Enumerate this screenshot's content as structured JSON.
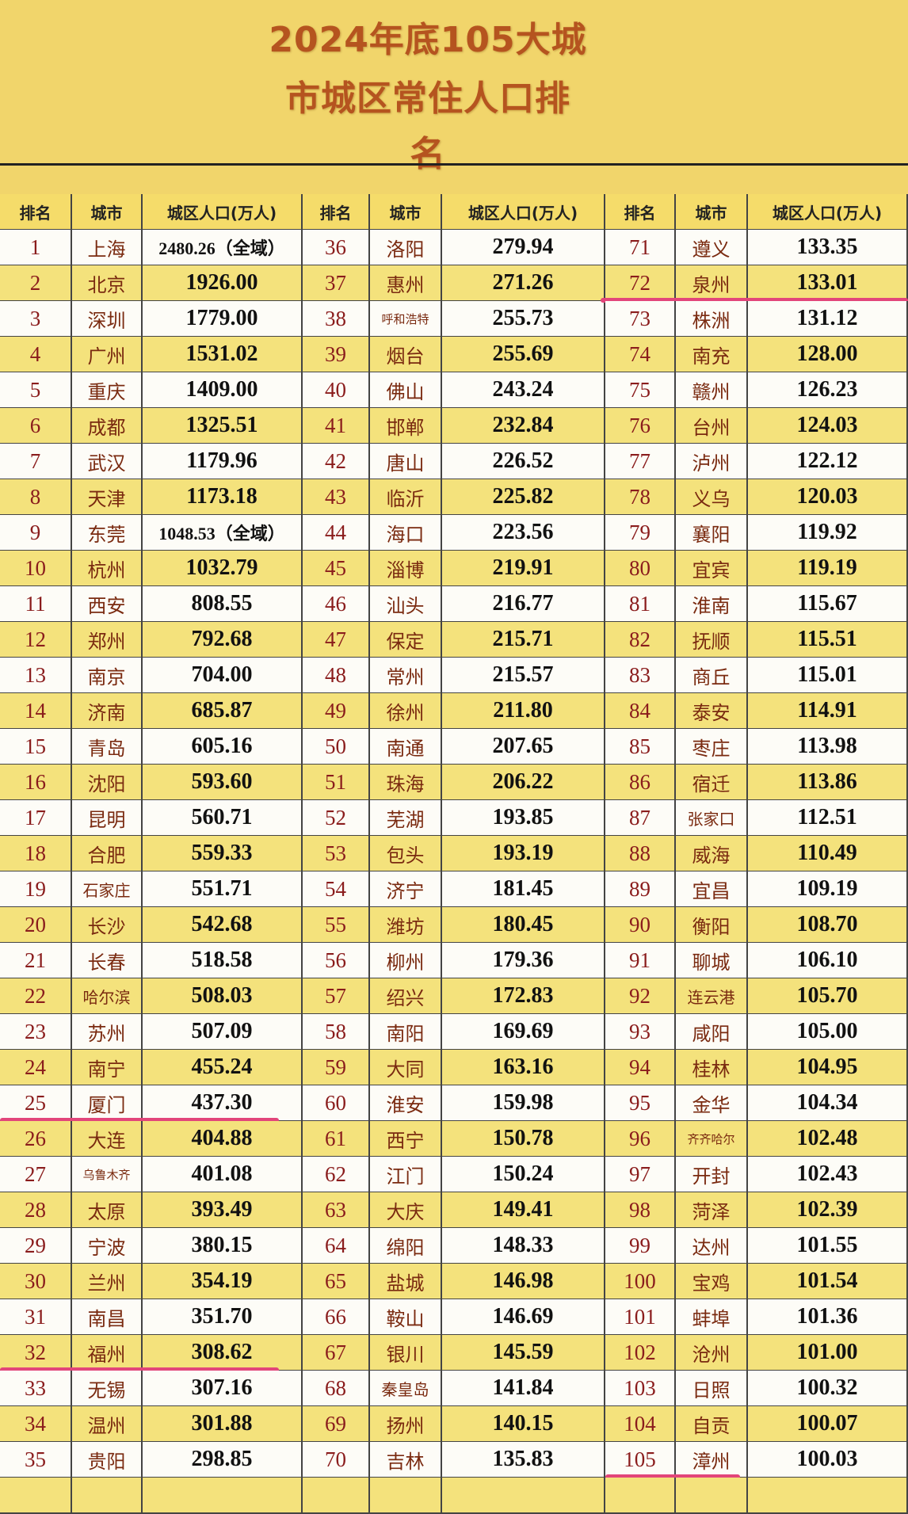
{
  "title": {
    "line1": "2024年底105大城",
    "line2": "市城区常住人口排",
    "line3": "名"
  },
  "header": {
    "rank": "排名",
    "city": "城市",
    "population": "城区人口(万人)"
  },
  "accent_colors": {
    "background": "#f1d56b",
    "row_yellow": "#f4e27c",
    "row_white": "#fdfcf7",
    "rank_text": "#8a1c1c",
    "highlight_underline": "#e2457a"
  },
  "highlighted_ranks": [
    25,
    32,
    72,
    105
  ],
  "columns": [
    [
      {
        "rank": "1",
        "city": "上海",
        "population": "2480.26（全域）"
      },
      {
        "rank": "2",
        "city": "北京",
        "population": "1926.00"
      },
      {
        "rank": "3",
        "city": "深圳",
        "population": "1779.00"
      },
      {
        "rank": "4",
        "city": "广州",
        "population": "1531.02"
      },
      {
        "rank": "5",
        "city": "重庆",
        "population": "1409.00"
      },
      {
        "rank": "6",
        "city": "成都",
        "population": "1325.51"
      },
      {
        "rank": "7",
        "city": "武汉",
        "population": "1179.96"
      },
      {
        "rank": "8",
        "city": "天津",
        "population": "1173.18"
      },
      {
        "rank": "9",
        "city": "东莞",
        "population": "1048.53（全域）"
      },
      {
        "rank": "10",
        "city": "杭州",
        "population": "1032.79"
      },
      {
        "rank": "11",
        "city": "西安",
        "population": "808.55"
      },
      {
        "rank": "12",
        "city": "郑州",
        "population": "792.68"
      },
      {
        "rank": "13",
        "city": "南京",
        "population": "704.00"
      },
      {
        "rank": "14",
        "city": "济南",
        "population": "685.87"
      },
      {
        "rank": "15",
        "city": "青岛",
        "population": "605.16"
      },
      {
        "rank": "16",
        "city": "沈阳",
        "population": "593.60"
      },
      {
        "rank": "17",
        "city": "昆明",
        "population": "560.71"
      },
      {
        "rank": "18",
        "city": "合肥",
        "population": "559.33"
      },
      {
        "rank": "19",
        "city": "石家庄",
        "population": "551.71"
      },
      {
        "rank": "20",
        "city": "长沙",
        "population": "542.68"
      },
      {
        "rank": "21",
        "city": "长春",
        "population": "518.58"
      },
      {
        "rank": "22",
        "city": "哈尔滨",
        "population": "508.03"
      },
      {
        "rank": "23",
        "city": "苏州",
        "population": "507.09"
      },
      {
        "rank": "24",
        "city": "南宁",
        "population": "455.24"
      },
      {
        "rank": "25",
        "city": "厦门",
        "population": "437.30"
      },
      {
        "rank": "26",
        "city": "大连",
        "population": "404.88"
      },
      {
        "rank": "27",
        "city": "乌鲁木齐",
        "population": "401.08"
      },
      {
        "rank": "28",
        "city": "太原",
        "population": "393.49"
      },
      {
        "rank": "29",
        "city": "宁波",
        "population": "380.15"
      },
      {
        "rank": "30",
        "city": "兰州",
        "population": "354.19"
      },
      {
        "rank": "31",
        "city": "南昌",
        "population": "351.70"
      },
      {
        "rank": "32",
        "city": "福州",
        "population": "308.62"
      },
      {
        "rank": "33",
        "city": "无锡",
        "population": "307.16"
      },
      {
        "rank": "34",
        "city": "温州",
        "population": "301.88"
      },
      {
        "rank": "35",
        "city": "贵阳",
        "population": "298.85"
      }
    ],
    [
      {
        "rank": "36",
        "city": "洛阳",
        "population": "279.94"
      },
      {
        "rank": "37",
        "city": "惠州",
        "population": "271.26"
      },
      {
        "rank": "38",
        "city": "呼和浩特",
        "population": "255.73"
      },
      {
        "rank": "39",
        "city": "烟台",
        "population": "255.69"
      },
      {
        "rank": "40",
        "city": "佛山",
        "population": "243.24"
      },
      {
        "rank": "41",
        "city": "邯郸",
        "population": "232.84"
      },
      {
        "rank": "42",
        "city": "唐山",
        "population": "226.52"
      },
      {
        "rank": "43",
        "city": "临沂",
        "population": "225.82"
      },
      {
        "rank": "44",
        "city": "海口",
        "population": "223.56"
      },
      {
        "rank": "45",
        "city": "淄博",
        "population": "219.91"
      },
      {
        "rank": "46",
        "city": "汕头",
        "population": "216.77"
      },
      {
        "rank": "47",
        "city": "保定",
        "population": "215.71"
      },
      {
        "rank": "48",
        "city": "常州",
        "population": "215.57"
      },
      {
        "rank": "49",
        "city": "徐州",
        "population": "211.80"
      },
      {
        "rank": "50",
        "city": "南通",
        "population": "207.65"
      },
      {
        "rank": "51",
        "city": "珠海",
        "population": "206.22"
      },
      {
        "rank": "52",
        "city": "芜湖",
        "population": "193.85"
      },
      {
        "rank": "53",
        "city": "包头",
        "population": "193.19"
      },
      {
        "rank": "54",
        "city": "济宁",
        "population": "181.45"
      },
      {
        "rank": "55",
        "city": "潍坊",
        "population": "180.45"
      },
      {
        "rank": "56",
        "city": "柳州",
        "population": "179.36"
      },
      {
        "rank": "57",
        "city": "绍兴",
        "population": "172.83"
      },
      {
        "rank": "58",
        "city": "南阳",
        "population": "169.69"
      },
      {
        "rank": "59",
        "city": "大同",
        "population": "163.16"
      },
      {
        "rank": "60",
        "city": "淮安",
        "population": "159.98"
      },
      {
        "rank": "61",
        "city": "西宁",
        "population": "150.78"
      },
      {
        "rank": "62",
        "city": "江门",
        "population": "150.24"
      },
      {
        "rank": "63",
        "city": "大庆",
        "population": "149.41"
      },
      {
        "rank": "64",
        "city": "绵阳",
        "population": "148.33"
      },
      {
        "rank": "65",
        "city": "盐城",
        "population": "146.98"
      },
      {
        "rank": "66",
        "city": "鞍山",
        "population": "146.69"
      },
      {
        "rank": "67",
        "city": "银川",
        "population": "145.59"
      },
      {
        "rank": "68",
        "city": "秦皇岛",
        "population": "141.84"
      },
      {
        "rank": "69",
        "city": "扬州",
        "population": "140.15"
      },
      {
        "rank": "70",
        "city": "吉林",
        "population": "135.83"
      }
    ],
    [
      {
        "rank": "71",
        "city": "遵义",
        "population": "133.35"
      },
      {
        "rank": "72",
        "city": "泉州",
        "population": "133.01"
      },
      {
        "rank": "73",
        "city": "株洲",
        "population": "131.12"
      },
      {
        "rank": "74",
        "city": "南充",
        "population": "128.00"
      },
      {
        "rank": "75",
        "city": "赣州",
        "population": "126.23"
      },
      {
        "rank": "76",
        "city": "台州",
        "population": "124.03"
      },
      {
        "rank": "77",
        "city": "泸州",
        "population": "122.12"
      },
      {
        "rank": "78",
        "city": "义乌",
        "population": "120.03"
      },
      {
        "rank": "79",
        "city": "襄阳",
        "population": "119.92"
      },
      {
        "rank": "80",
        "city": "宜宾",
        "population": "119.19"
      },
      {
        "rank": "81",
        "city": "淮南",
        "population": "115.67"
      },
      {
        "rank": "82",
        "city": "抚顺",
        "population": "115.51"
      },
      {
        "rank": "83",
        "city": "商丘",
        "population": "115.01"
      },
      {
        "rank": "84",
        "city": "泰安",
        "population": "114.91"
      },
      {
        "rank": "85",
        "city": "枣庄",
        "population": "113.98"
      },
      {
        "rank": "86",
        "city": "宿迁",
        "population": "113.86"
      },
      {
        "rank": "87",
        "city": "张家口",
        "population": "112.51"
      },
      {
        "rank": "88",
        "city": "威海",
        "population": "110.49"
      },
      {
        "rank": "89",
        "city": "宜昌",
        "population": "109.19"
      },
      {
        "rank": "90",
        "city": "衡阳",
        "population": "108.70"
      },
      {
        "rank": "91",
        "city": "聊城",
        "population": "106.10"
      },
      {
        "rank": "92",
        "city": "连云港",
        "population": "105.70"
      },
      {
        "rank": "93",
        "city": "咸阳",
        "population": "105.00"
      },
      {
        "rank": "94",
        "city": "桂林",
        "population": "104.95"
      },
      {
        "rank": "95",
        "city": "金华",
        "population": "104.34"
      },
      {
        "rank": "96",
        "city": "齐齐哈尔",
        "population": "102.48"
      },
      {
        "rank": "97",
        "city": "开封",
        "population": "102.43"
      },
      {
        "rank": "98",
        "city": "菏泽",
        "population": "102.39"
      },
      {
        "rank": "99",
        "city": "达州",
        "population": "101.55"
      },
      {
        "rank": "100",
        "city": "宝鸡",
        "population": "101.54"
      },
      {
        "rank": "101",
        "city": "蚌埠",
        "population": "101.36"
      },
      {
        "rank": "102",
        "city": "沧州",
        "population": "101.00"
      },
      {
        "rank": "103",
        "city": "日照",
        "population": "100.32"
      },
      {
        "rank": "104",
        "city": "自贡",
        "population": "100.07"
      },
      {
        "rank": "105",
        "city": "漳州",
        "population": "100.03"
      }
    ]
  ]
}
